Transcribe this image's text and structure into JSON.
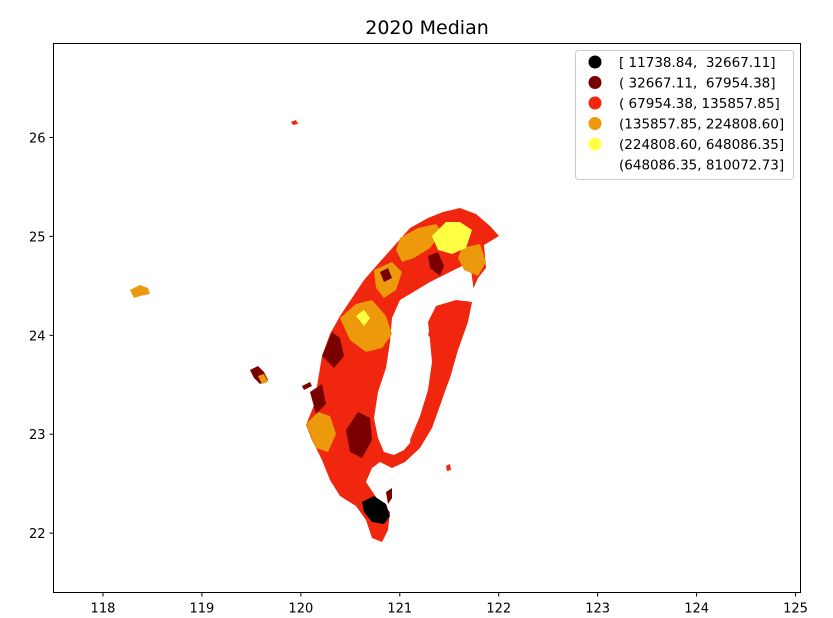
{
  "chart_data": {
    "type": "choropleth-map",
    "title": "2020 Median",
    "xlim": [
      117.5,
      125.05
    ],
    "ylim": [
      21.4,
      26.95
    ],
    "xticks": [
      "118",
      "119",
      "120",
      "121",
      "122",
      "123",
      "124",
      "125"
    ],
    "yticks": [
      "22",
      "23",
      "24",
      "25",
      "26"
    ],
    "grid": false,
    "legend": {
      "placement": "top-right",
      "entries": [
        {
          "label": "[ 11738.84,  32667.11]",
          "color": "#000000"
        },
        {
          "label": "( 32667.11,  67954.38]",
          "color": "#7a0000"
        },
        {
          "label": "( 67954.38, 135857.85]",
          "color": "#f0260e"
        },
        {
          "label": "(135857.85, 224808.60]",
          "color": "#ec9a0c"
        },
        {
          "label": "(224808.60, 648086.35]",
          "color": "#ffff44"
        },
        {
          "label": "(648086.35, 810072.73]",
          "color": "#ffffff"
        }
      ]
    }
  }
}
